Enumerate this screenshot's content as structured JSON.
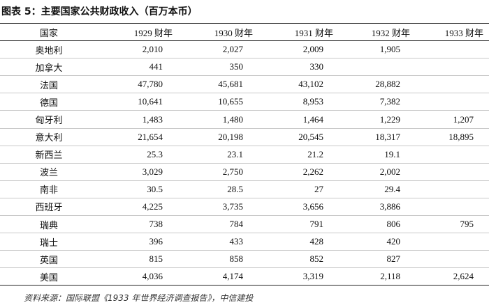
{
  "header": {
    "title": "图表 5：主要国家公共财政收入（百万本币）"
  },
  "table": {
    "columns": [
      "国家",
      "1929 财年",
      "1930 财年",
      "1931 财年",
      "1932 财年",
      "1933 财年"
    ],
    "rows": [
      [
        "奥地利",
        "2,010",
        "2,027",
        "2,009",
        "1,905",
        null
      ],
      [
        "加拿大",
        "441",
        "350",
        "330",
        null,
        null
      ],
      [
        "法国",
        "47,780",
        "45,681",
        "43,102",
        "28,882",
        null
      ],
      [
        "德国",
        "10,641",
        "10,655",
        "8,953",
        "7,382",
        null
      ],
      [
        "匈牙利",
        "1,483",
        "1,480",
        "1,464",
        "1,229",
        "1,207"
      ],
      [
        "意大利",
        "21,654",
        "20,198",
        "20,545",
        "18,317",
        "18,895"
      ],
      [
        "新西兰",
        "25.3",
        "23.1",
        "21.2",
        "19.1",
        null
      ],
      [
        "波兰",
        "3,029",
        "2,750",
        "2,262",
        "2,002",
        null
      ],
      [
        "南非",
        "30.5",
        "28.5",
        "27",
        "29.4",
        null
      ],
      [
        "西班牙",
        "4,225",
        "3,735",
        "3,656",
        "3,886",
        null
      ],
      [
        "瑞典",
        "738",
        "784",
        "791",
        "806",
        "795"
      ],
      [
        "瑞士",
        "396",
        "433",
        "428",
        "420",
        null
      ],
      [
        "英国",
        "815",
        "858",
        "852",
        "827",
        null
      ],
      [
        "美国",
        "4,036",
        "4,174",
        "3,319",
        "2,118",
        "2,624"
      ]
    ]
  },
  "footer": {
    "source": "资料来源：国际联盟《1933 年世界经济调查报告》，中信建投"
  }
}
